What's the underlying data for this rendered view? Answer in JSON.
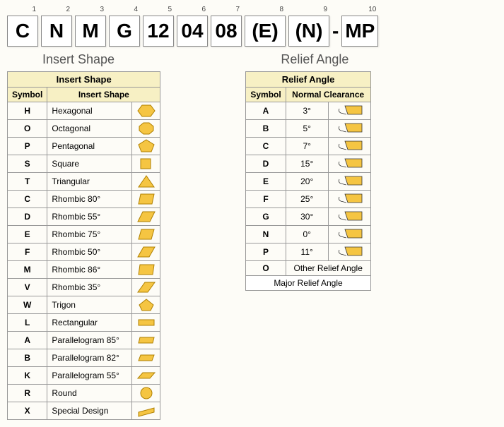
{
  "code": {
    "cells": [
      {
        "num": "1",
        "val": "C"
      },
      {
        "num": "2",
        "val": "N"
      },
      {
        "num": "3",
        "val": "M"
      },
      {
        "num": "4",
        "val": "G"
      },
      {
        "num": "5",
        "val": "12"
      },
      {
        "num": "6",
        "val": "04"
      },
      {
        "num": "7",
        "val": "08"
      },
      {
        "num": "8",
        "val": "(E)"
      },
      {
        "num": "9",
        "val": "(N)"
      },
      {
        "num": "10",
        "val": "MP"
      }
    ]
  },
  "insertShape": {
    "sectionLabel": "Insert Shape",
    "header": "Insert Shape",
    "colSymbol": "Symbol",
    "colDesc": "Insert Shape",
    "rows": [
      {
        "sym": "H",
        "desc": "Hexagonal",
        "shape": "hex"
      },
      {
        "sym": "O",
        "desc": "Octagonal",
        "shape": "oct"
      },
      {
        "sym": "P",
        "desc": "Pentagonal",
        "shape": "pent"
      },
      {
        "sym": "S",
        "desc": "Square",
        "shape": "square"
      },
      {
        "sym": "T",
        "desc": "Triangular",
        "shape": "tri"
      },
      {
        "sym": "C",
        "desc": "Rhombic 80°",
        "shape": "rhomb80"
      },
      {
        "sym": "D",
        "desc": "Rhombic 55°",
        "shape": "rhomb55"
      },
      {
        "sym": "E",
        "desc": "Rhombic 75°",
        "shape": "rhomb75"
      },
      {
        "sym": "F",
        "desc": "Rhombic 50°",
        "shape": "rhomb50"
      },
      {
        "sym": "M",
        "desc": "Rhombic 86°",
        "shape": "rhomb86"
      },
      {
        "sym": "V",
        "desc": "Rhombic 35°",
        "shape": "rhomb35"
      },
      {
        "sym": "W",
        "desc": "Trigon",
        "shape": "trigon"
      },
      {
        "sym": "L",
        "desc": "Rectangular",
        "shape": "rect"
      },
      {
        "sym": "A",
        "desc": "Parallelogram 85°",
        "shape": "para85"
      },
      {
        "sym": "B",
        "desc": "Parallelogram 82°",
        "shape": "para82"
      },
      {
        "sym": "K",
        "desc": "Parallelogram 55°",
        "shape": "para55"
      },
      {
        "sym": "R",
        "desc": "Round",
        "shape": "round"
      },
      {
        "sym": "X",
        "desc": "Special Design",
        "shape": "special"
      }
    ]
  },
  "reliefAngle": {
    "sectionLabel": "Relief Angle",
    "header": "Relief Angle",
    "colSymbol": "Symbol",
    "colDesc": "Normal Clearance",
    "footer": "Major Relief Angle",
    "rows": [
      {
        "sym": "A",
        "val": "3°",
        "icon": true
      },
      {
        "sym": "B",
        "val": "5°",
        "icon": true
      },
      {
        "sym": "C",
        "val": "7°",
        "icon": true
      },
      {
        "sym": "D",
        "val": "15°",
        "icon": true
      },
      {
        "sym": "E",
        "val": "20°",
        "icon": true
      },
      {
        "sym": "F",
        "val": "25°",
        "icon": true
      },
      {
        "sym": "G",
        "val": "30°",
        "icon": true
      },
      {
        "sym": "N",
        "val": "0°",
        "icon": true
      },
      {
        "sym": "P",
        "val": "11°",
        "icon": true
      },
      {
        "sym": "O",
        "val": "Other Relief Angle",
        "icon": false
      }
    ]
  },
  "colors": {
    "shapeFill": "#f5c542",
    "shapeStroke": "#b08000",
    "reliefFill": "#f5c542",
    "reliefStroke": "#333"
  }
}
